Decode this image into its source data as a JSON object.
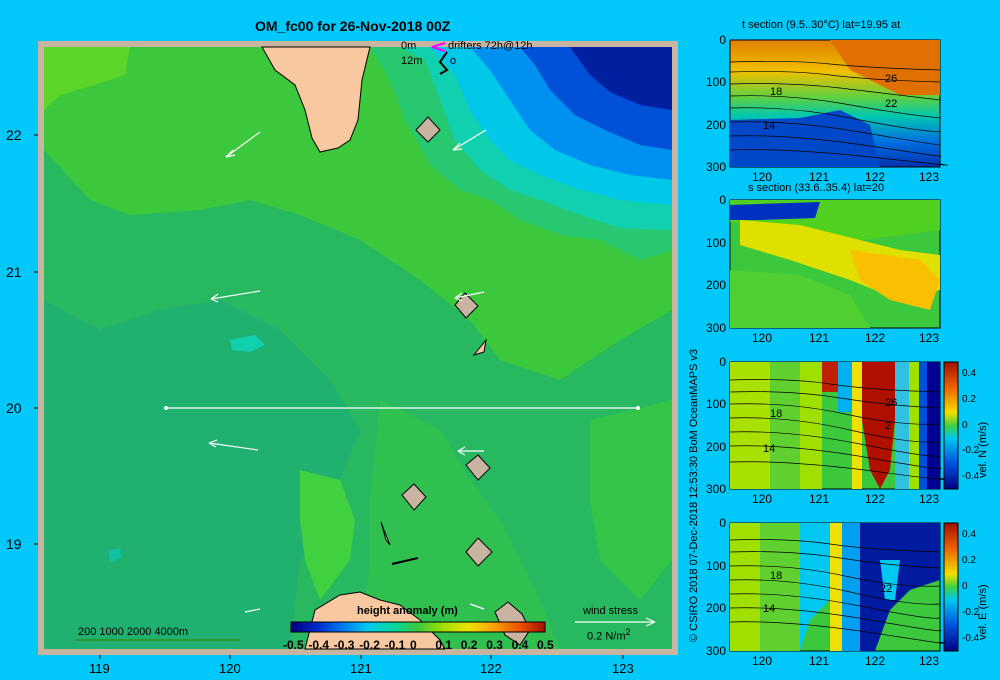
{
  "map": {
    "title": "OM_fc00 for 26-Nov-2018 00Z",
    "legend_lines": [
      "0m",
      "12m"
    ],
    "drifters_label": "drifters 72h@12h",
    "drifter_mark": "o",
    "x_ticks": [
      "119",
      "120",
      "121",
      "122",
      "123"
    ],
    "y_ticks": [
      "22",
      "21",
      "20",
      "19"
    ],
    "depth_legend": "200  1000  2000  4000m",
    "colorbar_title": "height anomaly (m)",
    "colorbar_ticks": [
      "-0.5",
      "-0.4",
      "-0.3",
      "-0.2",
      "-0.1",
      "0",
      "0.1",
      "0.2",
      "0.3",
      "0.4",
      "0.5"
    ],
    "wind_label_1": "wind stress",
    "wind_label_2": "0.2 N/m",
    "wind_label_exp": "2",
    "credit": "© CSIRO 2018   07-Dec-2018 12:53:30 BoM OceanMAPS v3",
    "colors": {
      "ocean": "#3cc83c",
      "land": "#f8c8a0",
      "frame": "#c8b4a0",
      "background": "#00c8f8"
    }
  },
  "panels": [
    {
      "id": "t",
      "title": "t section (9.5..30°C) lat=19.95 at",
      "x_ticks": [
        "120",
        "121",
        "122",
        "123"
      ],
      "y_ticks": [
        "0",
        "100",
        "200",
        "300"
      ],
      "contour_labels": [
        "18",
        "14",
        "26",
        "22"
      ]
    },
    {
      "id": "s",
      "title": "s section (33.6..35.4) lat=20",
      "x_ticks": [
        "120",
        "121",
        "122",
        "123"
      ],
      "y_ticks": [
        "0",
        "100",
        "200",
        "300"
      ],
      "contour_labels": []
    },
    {
      "id": "vn",
      "title": "",
      "x_ticks": [
        "120",
        "121",
        "122",
        "123"
      ],
      "y_ticks": [
        "0",
        "100",
        "200",
        "300"
      ],
      "contour_labels": [
        "18",
        "14",
        "26",
        "2"
      ],
      "cbar_label": "vel. N (m/s)",
      "cbar_ticks": [
        "0.4",
        "0.2",
        "0",
        "-0.2",
        "-0.4"
      ]
    },
    {
      "id": "ve",
      "title": "",
      "x_ticks": [
        "120",
        "121",
        "122",
        "123"
      ],
      "y_ticks": [
        "0",
        "100",
        "200",
        "300"
      ],
      "contour_labels": [
        "18",
        "14",
        "22"
      ],
      "cbar_label": "vel. E (m/s)",
      "cbar_ticks": [
        "0.4",
        "0.2",
        "0",
        "-0.2",
        "-0.4"
      ]
    }
  ],
  "chart_data": [
    {
      "type": "heatmap",
      "title": "OM_fc00 for 26-Nov-2018 00Z",
      "variable": "height anomaly (m)",
      "xlim": [
        118.5,
        123.5
      ],
      "ylim": [
        18.3,
        22.7
      ],
      "colorbar_range": [
        -0.5,
        0.5
      ],
      "section_line": {
        "lon": [
          119.5,
          123.25
        ],
        "lat": [
          20,
          20
        ]
      },
      "wind_arrows": [
        {
          "lon": 119.9,
          "lat": 21.8,
          "dir": "SW"
        },
        {
          "lon": 121.9,
          "lat": 21.9,
          "dir": "SW"
        },
        {
          "lon": 119.8,
          "lat": 20.8,
          "dir": "W"
        },
        {
          "lon": 121.8,
          "lat": 20.8,
          "dir": "W"
        },
        {
          "lon": 119.8,
          "lat": 19.75,
          "dir": "W"
        },
        {
          "lon": 121.8,
          "lat": 19.7,
          "dir": "W"
        }
      ]
    },
    {
      "type": "heatmap",
      "title": "t section (9.5..30°C) lat=19.95 at",
      "xlim": [
        119.5,
        123.2
      ],
      "ylim": [
        300,
        0
      ],
      "value_range": [
        9.5,
        30
      ]
    },
    {
      "type": "heatmap",
      "title": "s section (33.6..35.4) lat=20",
      "xlim": [
        119.5,
        123.2
      ],
      "ylim": [
        300,
        0
      ],
      "value_range": [
        33.6,
        35.4
      ]
    },
    {
      "type": "heatmap",
      "title": "vel. N (m/s)",
      "xlim": [
        119.5,
        123.2
      ],
      "ylim": [
        300,
        0
      ],
      "value_range": [
        -0.4,
        0.4
      ]
    },
    {
      "type": "heatmap",
      "title": "vel. E (m/s)",
      "xlim": [
        119.5,
        123.2
      ],
      "ylim": [
        300,
        0
      ],
      "value_range": [
        -0.4,
        0.4
      ]
    }
  ]
}
